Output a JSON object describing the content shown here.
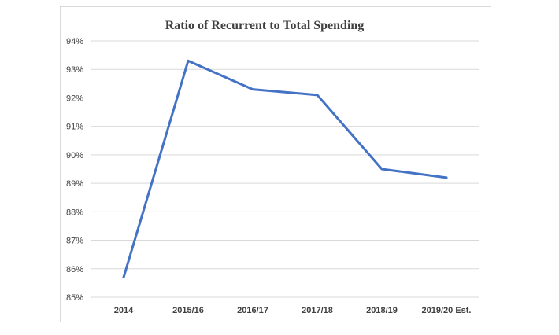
{
  "chart_data": {
    "type": "line",
    "title": "Ratio of Recurrent to Total Spending",
    "xlabel": "",
    "ylabel": "",
    "categories": [
      "2014",
      "2015/16",
      "2016/17",
      "2017/18",
      "2018/19",
      "2019/20 Est."
    ],
    "series": [
      {
        "values": [
          85.7,
          93.3,
          92.3,
          92.1,
          89.5,
          89.2
        ]
      }
    ],
    "ylim": [
      85,
      94
    ],
    "yticks": [
      85,
      86,
      87,
      88,
      89,
      90,
      91,
      92,
      93,
      94
    ],
    "ytick_labels": [
      "85%",
      "86%",
      "87%",
      "88%",
      "89%",
      "90%",
      "91%",
      "92%",
      "93%",
      "94%"
    ],
    "grid": true,
    "legend": "none",
    "line_color": "#4472c4",
    "grid_color": "#d9d9d9"
  }
}
